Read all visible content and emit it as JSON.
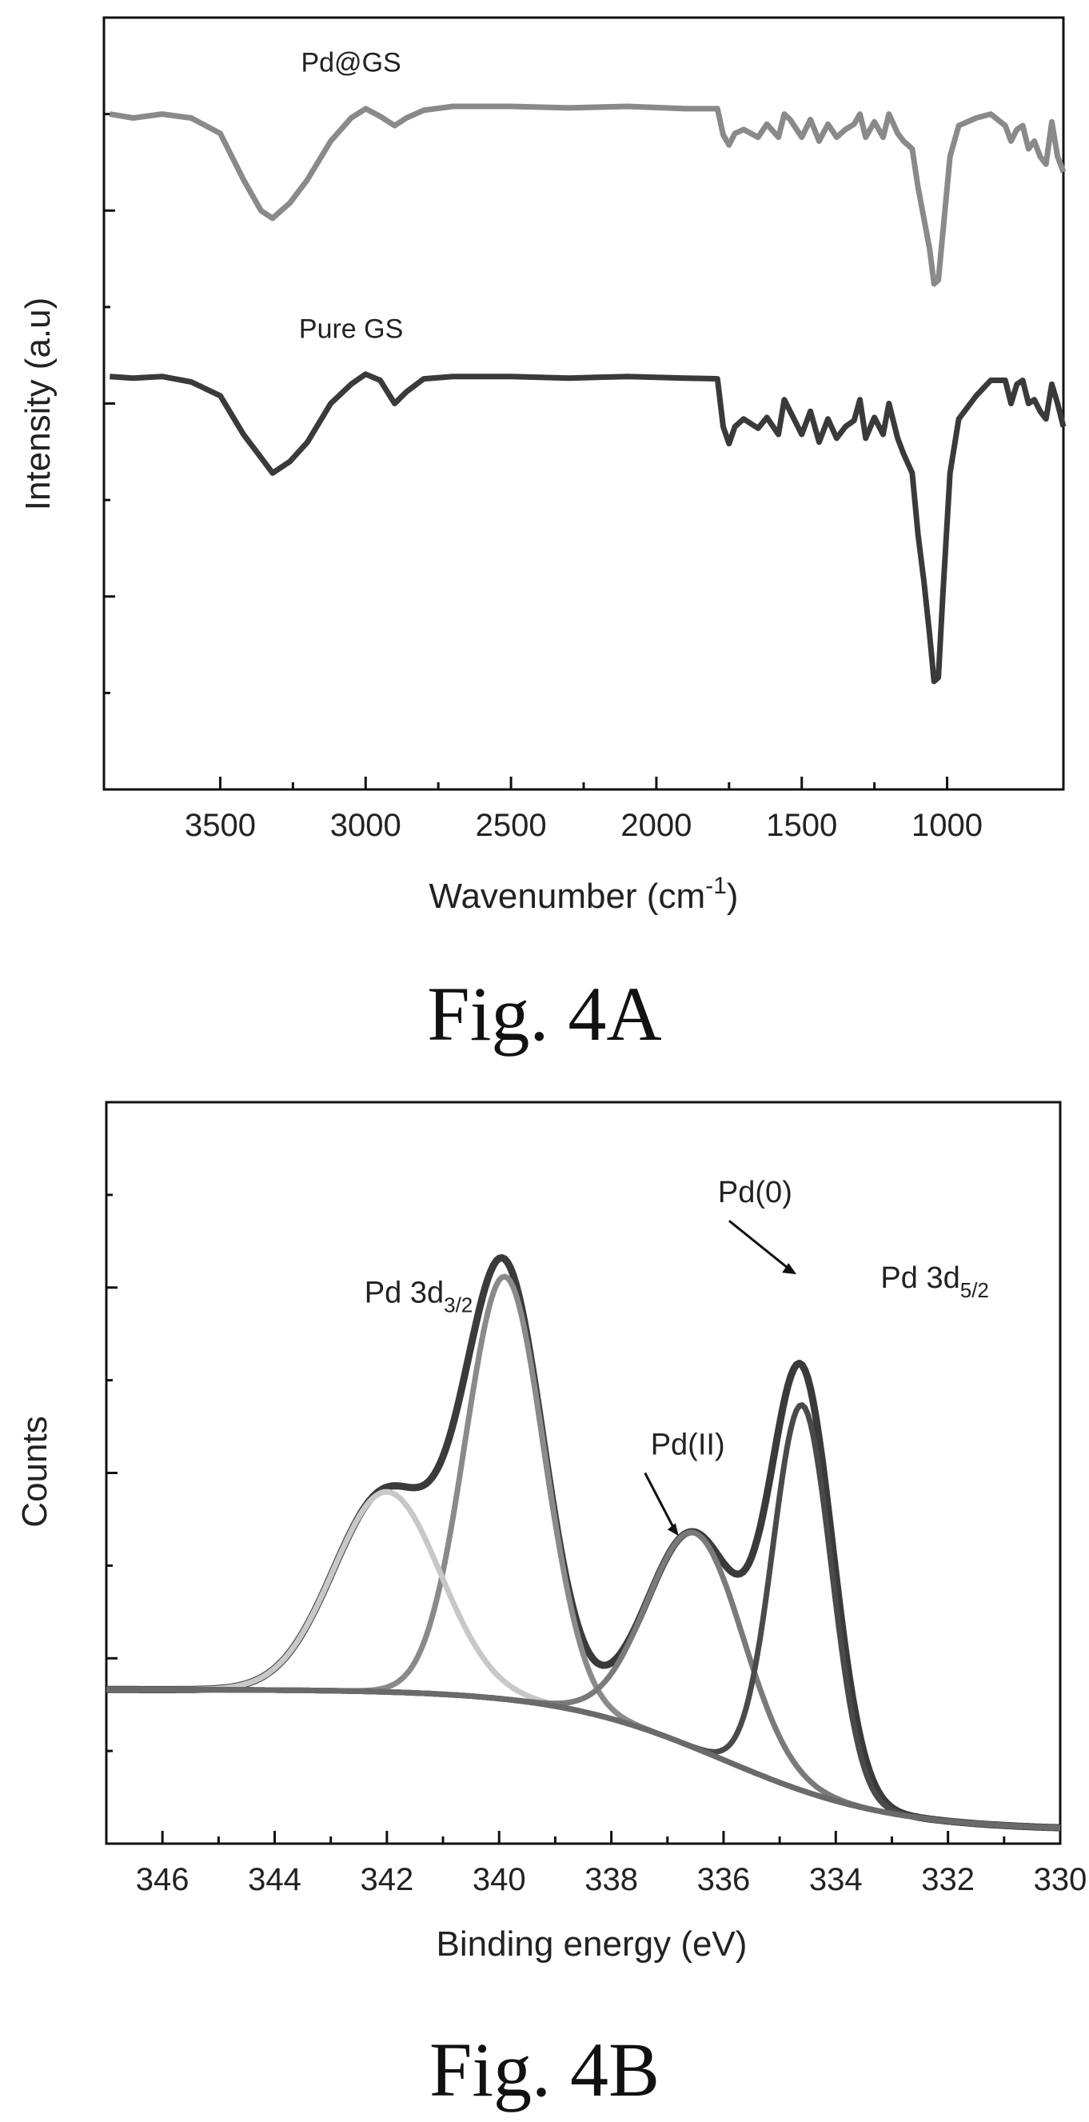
{
  "chart_data": [
    {
      "type": "line",
      "caption": "Fig. 4A",
      "xlabel": "Wavenumber (cm",
      "xlabel_sup": "-1",
      "xlabel_close": ")",
      "ylabel": "Intensity (a.u)",
      "xlim": [
        3900,
        600
      ],
      "x_reversed": true,
      "ylim": [
        0,
        1
      ],
      "y_ticks_unlabeled": true,
      "x_ticks": [
        3500,
        3000,
        2500,
        2000,
        1500,
        1000
      ],
      "tick_labels": [
        "3500",
        "3000",
        "2500",
        "2000",
        "1500",
        "1000"
      ],
      "series": [
        {
          "name": "Pd@GS",
          "color": "#8a8a8a",
          "points": [
            [
              3880,
              0.875
            ],
            [
              3800,
              0.87
            ],
            [
              3700,
              0.875
            ],
            [
              3600,
              0.87
            ],
            [
              3500,
              0.85
            ],
            [
              3420,
              0.79
            ],
            [
              3360,
              0.75
            ],
            [
              3320,
              0.74
            ],
            [
              3260,
              0.76
            ],
            [
              3200,
              0.79
            ],
            [
              3120,
              0.84
            ],
            [
              3050,
              0.87
            ],
            [
              3000,
              0.882
            ],
            [
              2950,
              0.872
            ],
            [
              2900,
              0.86
            ],
            [
              2860,
              0.87
            ],
            [
              2800,
              0.88
            ],
            [
              2700,
              0.885
            ],
            [
              2500,
              0.885
            ],
            [
              2300,
              0.883
            ],
            [
              2100,
              0.885
            ],
            [
              1900,
              0.882
            ],
            [
              1790,
              0.882
            ],
            [
              1770,
              0.848
            ],
            [
              1750,
              0.835
            ],
            [
              1730,
              0.85
            ],
            [
              1700,
              0.855
            ],
            [
              1650,
              0.845
            ],
            [
              1620,
              0.862
            ],
            [
              1580,
              0.845
            ],
            [
              1560,
              0.875
            ],
            [
              1540,
              0.868
            ],
            [
              1500,
              0.845
            ],
            [
              1470,
              0.868
            ],
            [
              1440,
              0.84
            ],
            [
              1410,
              0.862
            ],
            [
              1380,
              0.845
            ],
            [
              1350,
              0.855
            ],
            [
              1320,
              0.862
            ],
            [
              1300,
              0.875
            ],
            [
              1280,
              0.845
            ],
            [
              1250,
              0.865
            ],
            [
              1220,
              0.845
            ],
            [
              1200,
              0.875
            ],
            [
              1170,
              0.85
            ],
            [
              1150,
              0.84
            ],
            [
              1120,
              0.83
            ],
            [
              1100,
              0.78
            ],
            [
              1080,
              0.74
            ],
            [
              1060,
              0.7
            ],
            [
              1045,
              0.655
            ],
            [
              1030,
              0.66
            ],
            [
              1015,
              0.72
            ],
            [
              990,
              0.82
            ],
            [
              960,
              0.86
            ],
            [
              900,
              0.87
            ],
            [
              850,
              0.875
            ],
            [
              800,
              0.86
            ],
            [
              780,
              0.84
            ],
            [
              760,
              0.855
            ],
            [
              740,
              0.86
            ],
            [
              720,
              0.83
            ],
            [
              700,
              0.84
            ],
            [
              680,
              0.82
            ],
            [
              660,
              0.81
            ],
            [
              640,
              0.865
            ],
            [
              620,
              0.82
            ],
            [
              600,
              0.8
            ]
          ]
        },
        {
          "name": "Pure GS",
          "color": "#3a3a3a",
          "points": [
            [
              3880,
              0.535
            ],
            [
              3800,
              0.533
            ],
            [
              3700,
              0.535
            ],
            [
              3600,
              0.528
            ],
            [
              3500,
              0.51
            ],
            [
              3420,
              0.46
            ],
            [
              3360,
              0.43
            ],
            [
              3320,
              0.41
            ],
            [
              3260,
              0.425
            ],
            [
              3200,
              0.45
            ],
            [
              3120,
              0.5
            ],
            [
              3050,
              0.525
            ],
            [
              3000,
              0.538
            ],
            [
              2950,
              0.53
            ],
            [
              2900,
              0.5
            ],
            [
              2860,
              0.515
            ],
            [
              2800,
              0.532
            ],
            [
              2700,
              0.535
            ],
            [
              2500,
              0.535
            ],
            [
              2300,
              0.533
            ],
            [
              2100,
              0.535
            ],
            [
              1900,
              0.533
            ],
            [
              1790,
              0.532
            ],
            [
              1770,
              0.47
            ],
            [
              1750,
              0.448
            ],
            [
              1730,
              0.47
            ],
            [
              1700,
              0.48
            ],
            [
              1650,
              0.468
            ],
            [
              1620,
              0.482
            ],
            [
              1580,
              0.46
            ],
            [
              1560,
              0.505
            ],
            [
              1540,
              0.49
            ],
            [
              1500,
              0.46
            ],
            [
              1470,
              0.49
            ],
            [
              1440,
              0.45
            ],
            [
              1410,
              0.48
            ],
            [
              1380,
              0.455
            ],
            [
              1350,
              0.47
            ],
            [
              1320,
              0.478
            ],
            [
              1300,
              0.505
            ],
            [
              1280,
              0.455
            ],
            [
              1250,
              0.482
            ],
            [
              1220,
              0.46
            ],
            [
              1200,
              0.5
            ],
            [
              1170,
              0.455
            ],
            [
              1150,
              0.435
            ],
            [
              1120,
              0.41
            ],
            [
              1100,
              0.33
            ],
            [
              1080,
              0.27
            ],
            [
              1060,
              0.2
            ],
            [
              1045,
              0.14
            ],
            [
              1030,
              0.145
            ],
            [
              1015,
              0.25
            ],
            [
              990,
              0.41
            ],
            [
              960,
              0.48
            ],
            [
              900,
              0.51
            ],
            [
              850,
              0.53
            ],
            [
              800,
              0.53
            ],
            [
              780,
              0.5
            ],
            [
              760,
              0.525
            ],
            [
              740,
              0.53
            ],
            [
              720,
              0.5
            ],
            [
              700,
              0.505
            ],
            [
              680,
              0.49
            ],
            [
              660,
              0.48
            ],
            [
              640,
              0.525
            ],
            [
              620,
              0.5
            ],
            [
              600,
              0.47
            ]
          ]
        }
      ]
    },
    {
      "type": "line",
      "caption": "Fig. 4B",
      "xlabel": "Binding energy (eV)",
      "ylabel": "Counts",
      "xlim": [
        347,
        330
      ],
      "x_reversed": true,
      "ylim": [
        0,
        1
      ],
      "y_ticks_unlabeled": true,
      "x_ticks": [
        346,
        344,
        342,
        340,
        338,
        336,
        334,
        332,
        330
      ],
      "tick_labels": [
        "346",
        "344",
        "342",
        "340",
        "338",
        "336",
        "334",
        "332",
        "330"
      ],
      "annotations": [
        {
          "text": "Pd(0)",
          "x": 336.1,
          "y": 0.865
        },
        {
          "text": "Pd 3d",
          "sub": "5/2",
          "x": 333.2,
          "y": 0.75
        },
        {
          "text": "Pd 3d",
          "sub": "3/2",
          "x": 342.4,
          "y": 0.73
        },
        {
          "text": "Pd(II)",
          "x": 337.3,
          "y": 0.525
        }
      ],
      "series": [
        {
          "name": "",
          "role": "envelope",
          "color": "#3a3a3a",
          "peaks": [
            [
              339.9,
              0.57,
              0.7
            ],
            [
              342.0,
              0.27,
              0.95
            ],
            [
              336.5,
              0.29,
              0.85
            ],
            [
              334.6,
              0.55,
              0.55
            ]
          ],
          "baseline": {
            "left": 0.208,
            "right": 0.018,
            "center": 336.0,
            "width": 1.5
          }
        },
        {
          "name": "",
          "role": "Pd 3d3/2 component",
          "color": "#8a8a8a",
          "peaks": [
            [
              339.9,
              0.57,
              0.7
            ]
          ],
          "baseline": {
            "left": 0.208,
            "right": 0.018,
            "center": 336.0,
            "width": 1.5
          }
        },
        {
          "name": "",
          "role": "satellite component",
          "color": "#c8c8c8",
          "peaks": [
            [
              342.0,
              0.27,
              0.95
            ]
          ],
          "baseline": {
            "left": 0.208,
            "right": 0.018,
            "center": 336.0,
            "width": 1.5
          }
        },
        {
          "name": "",
          "role": "Pd(II) component",
          "color": "#7a7a7a",
          "peaks": [
            [
              336.5,
              0.29,
              0.85
            ]
          ],
          "baseline": {
            "left": 0.208,
            "right": 0.018,
            "center": 336.0,
            "width": 1.5
          }
        },
        {
          "name": "",
          "role": "Pd(0) component",
          "color": "#4a4a4a",
          "peaks": [
            [
              334.6,
              0.52,
              0.52
            ]
          ],
          "baseline": {
            "left": 0.208,
            "right": 0.018,
            "center": 336.0,
            "width": 1.5
          }
        },
        {
          "name": "",
          "role": "background",
          "color": "#6a6a6a",
          "peaks": [],
          "baseline": {
            "left": 0.208,
            "right": 0.018,
            "center": 336.0,
            "width": 1.5
          }
        }
      ]
    }
  ]
}
